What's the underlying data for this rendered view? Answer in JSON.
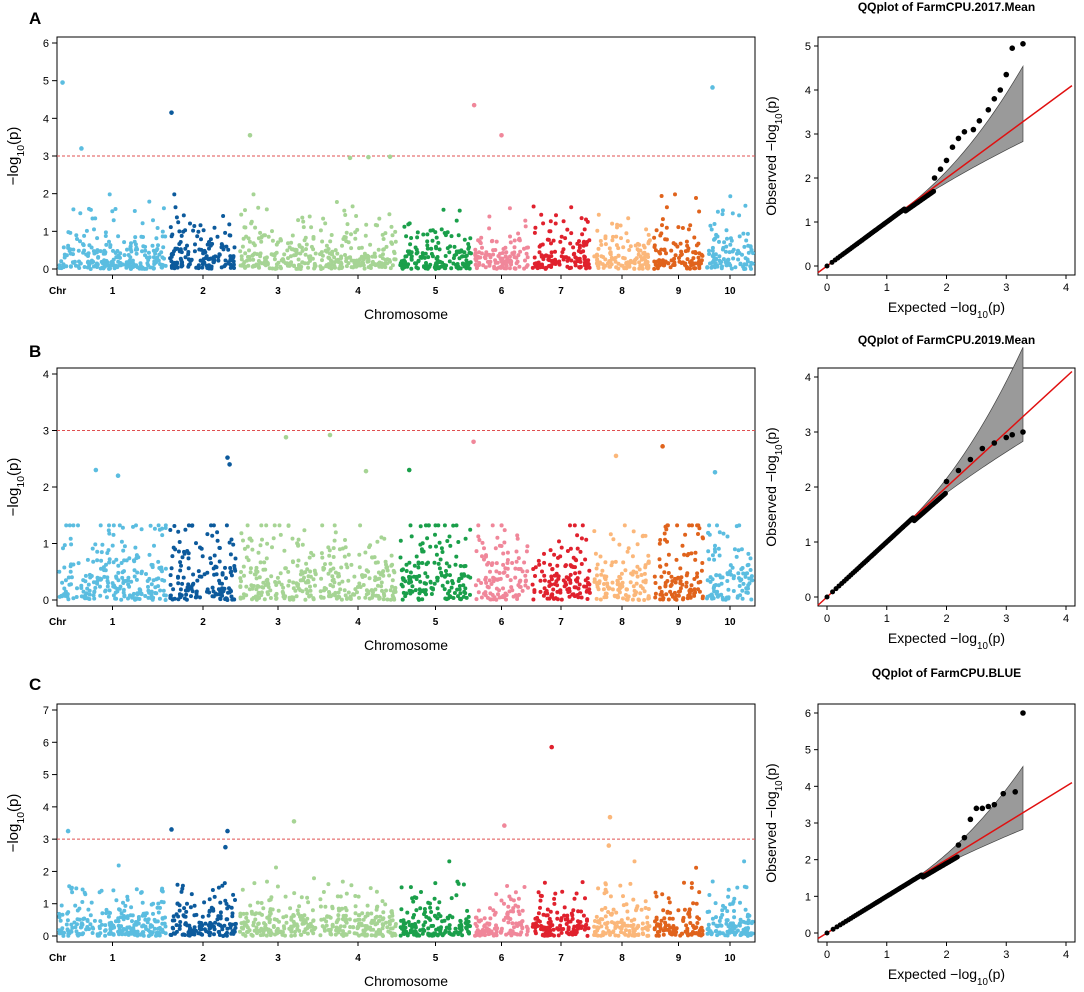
{
  "chromosome_colors": [
    "#5bbde0",
    "#0c5a9c",
    "#a6d494",
    "#a6d494",
    "#1a9f4a",
    "#f0879a",
    "#e0212d",
    "#fbb77a",
    "#e0631c",
    "#5bbde0",
    "#0c5a9c"
  ],
  "threshold_color": "#e05050",
  "qq_line_color": "#e01010",
  "qq_band_color": "#9a9a9a",
  "panels": [
    {
      "letter": "A",
      "manhattan": {
        "ylabel": "−log10(p)",
        "xlabel": "Chromosome",
        "chr_label": "Chr",
        "ylim": [
          0,
          6
        ],
        "yticks": [
          0,
          1,
          2,
          3,
          4,
          5,
          6
        ],
        "threshold": 3,
        "chromosomes": [
          "1",
          "2",
          "3",
          "4",
          "5",
          "6",
          "7",
          "8",
          "9",
          "10"
        ],
        "peaks": [
          {
            "chr": 1,
            "pos": 0.05,
            "value": 4.95
          },
          {
            "chr": 1,
            "pos": 0.22,
            "value": 3.2
          },
          {
            "chr": 2,
            "pos": 0.05,
            "value": 4.15
          },
          {
            "chr": 3,
            "pos": 0.15,
            "value": 3.55
          },
          {
            "chr": 4,
            "pos": 0.4,
            "value": 2.95
          },
          {
            "chr": 4,
            "pos": 0.63,
            "value": 2.97
          },
          {
            "chr": 4,
            "pos": 0.9,
            "value": 2.98
          },
          {
            "chr": 6,
            "pos": 0.02,
            "value": 4.35
          },
          {
            "chr": 6,
            "pos": 0.5,
            "value": 3.55
          },
          {
            "chr": 10,
            "pos": 0.15,
            "value": 4.82
          }
        ]
      },
      "qq": {
        "title": "QQplot of FarmCPU.2017.Mean",
        "xlabel": "Expected  −log10(p)",
        "ylabel": "Observed  −log10(p)",
        "xlim": [
          0,
          4
        ],
        "ylim": [
          0,
          5
        ],
        "xticks": [
          0,
          1,
          2,
          3,
          4
        ],
        "yticks": [
          0,
          1,
          2,
          3,
          4,
          5
        ],
        "tail": [
          {
            "x": 1.8,
            "y": 2.0
          },
          {
            "x": 1.9,
            "y": 2.2
          },
          {
            "x": 2.0,
            "y": 2.4
          },
          {
            "x": 2.1,
            "y": 2.7
          },
          {
            "x": 2.2,
            "y": 2.9
          },
          {
            "x": 2.3,
            "y": 3.05
          },
          {
            "x": 2.45,
            "y": 3.1
          },
          {
            "x": 2.55,
            "y": 3.3
          },
          {
            "x": 2.7,
            "y": 3.55
          },
          {
            "x": 2.8,
            "y": 3.8
          },
          {
            "x": 2.9,
            "y": 4.0
          },
          {
            "x": 3.0,
            "y": 4.35
          },
          {
            "x": 3.1,
            "y": 4.95
          },
          {
            "x": 3.28,
            "y": 5.05
          }
        ]
      }
    },
    {
      "letter": "B",
      "manhattan": {
        "ylabel": "−log10(p)",
        "xlabel": "Chromosome",
        "chr_label": "Chr",
        "ylim": [
          0,
          4
        ],
        "yticks": [
          0,
          1,
          2,
          3,
          4
        ],
        "threshold": 3,
        "chromosomes": [
          "1",
          "2",
          "3",
          "4",
          "5",
          "6",
          "7",
          "8",
          "9",
          "10"
        ],
        "peaks": [
          {
            "chr": 1,
            "pos": 0.35,
            "value": 2.3
          },
          {
            "chr": 1,
            "pos": 0.55,
            "value": 2.2
          },
          {
            "chr": 2,
            "pos": 0.85,
            "value": 2.52
          },
          {
            "chr": 2,
            "pos": 0.88,
            "value": 2.4
          },
          {
            "chr": 3,
            "pos": 0.6,
            "value": 2.88
          },
          {
            "chr": 4,
            "pos": 0.15,
            "value": 2.92
          },
          {
            "chr": 4,
            "pos": 0.6,
            "value": 2.28
          },
          {
            "chr": 5,
            "pos": 0.15,
            "value": 2.3
          },
          {
            "chr": 6,
            "pos": 0.01,
            "value": 2.8
          },
          {
            "chr": 8,
            "pos": 0.4,
            "value": 2.55
          },
          {
            "chr": 9,
            "pos": 0.2,
            "value": 2.72
          },
          {
            "chr": 10,
            "pos": 0.2,
            "value": 2.26
          }
        ]
      },
      "qq": {
        "title": "QQplot of FarmCPU.2019.Mean",
        "xlabel": "Expected  −log10(p)",
        "ylabel": "Observed  −log10(p)",
        "xlim": [
          0,
          4
        ],
        "ylim": [
          0,
          4
        ],
        "xticks": [
          0,
          1,
          2,
          3,
          4
        ],
        "yticks": [
          0,
          1,
          2,
          3,
          4
        ],
        "tail": [
          {
            "x": 2.0,
            "y": 2.1
          },
          {
            "x": 2.2,
            "y": 2.3
          },
          {
            "x": 2.4,
            "y": 2.5
          },
          {
            "x": 2.6,
            "y": 2.7
          },
          {
            "x": 2.8,
            "y": 2.8
          },
          {
            "x": 3.0,
            "y": 2.9
          },
          {
            "x": 3.1,
            "y": 2.95
          },
          {
            "x": 3.28,
            "y": 3.0
          }
        ]
      }
    },
    {
      "letter": "C",
      "manhattan": {
        "ylabel": "−log10(p)",
        "xlabel": "Chromosome",
        "chr_label": "Chr",
        "ylim": [
          0,
          7
        ],
        "yticks": [
          0,
          1,
          2,
          3,
          4,
          5,
          6,
          7
        ],
        "threshold": 3,
        "chromosomes": [
          "1",
          "2",
          "3",
          "4",
          "5",
          "6",
          "7",
          "8",
          "9",
          "10"
        ],
        "peaks": [
          {
            "chr": 1,
            "pos": 0.1,
            "value": 3.25
          },
          {
            "chr": 2,
            "pos": 0.05,
            "value": 3.3
          },
          {
            "chr": 2,
            "pos": 0.85,
            "value": 3.25
          },
          {
            "chr": 2,
            "pos": 0.82,
            "value": 2.75
          },
          {
            "chr": 3,
            "pos": 0.7,
            "value": 3.55
          },
          {
            "chr": 6,
            "pos": 0.55,
            "value": 3.42
          },
          {
            "chr": 7,
            "pos": 0.35,
            "value": 5.85
          },
          {
            "chr": 8,
            "pos": 0.3,
            "value": 3.68
          },
          {
            "chr": 8,
            "pos": 0.28,
            "value": 2.8
          }
        ]
      },
      "qq": {
        "title": "QQplot of FarmCPU.BLUE",
        "xlabel": "Expected  −log10(p)",
        "ylabel": "Observed  −log10(p)",
        "xlim": [
          0,
          4
        ],
        "ylim": [
          0,
          6
        ],
        "xticks": [
          0,
          1,
          2,
          3,
          4
        ],
        "yticks": [
          0,
          1,
          2,
          3,
          4,
          5,
          6
        ],
        "tail": [
          {
            "x": 2.2,
            "y": 2.4
          },
          {
            "x": 2.3,
            "y": 2.6
          },
          {
            "x": 2.4,
            "y": 3.1
          },
          {
            "x": 2.5,
            "y": 3.4
          },
          {
            "x": 2.6,
            "y": 3.4
          },
          {
            "x": 2.7,
            "y": 3.45
          },
          {
            "x": 2.8,
            "y": 3.5
          },
          {
            "x": 2.95,
            "y": 3.8
          },
          {
            "x": 3.15,
            "y": 3.85
          },
          {
            "x": 3.28,
            "y": 6.0
          }
        ]
      }
    }
  ],
  "chart_data": [
    {
      "type": "scatter",
      "subtype": "manhattan",
      "panel": "A",
      "xlabel": "Chromosome",
      "ylabel": "−log10(p)",
      "ylim": [
        0,
        6
      ],
      "threshold": 3,
      "categories": [
        "1",
        "2",
        "3",
        "4",
        "5",
        "6",
        "7",
        "8",
        "9",
        "10"
      ]
    },
    {
      "type": "scatter",
      "subtype": "qq",
      "panel": "A",
      "title": "QQplot of FarmCPU.2017.Mean",
      "xlabel": "Expected −log10(p)",
      "ylabel": "Observed −log10(p)",
      "xlim": [
        0,
        4
      ],
      "ylim": [
        0,
        5
      ],
      "max_observed": 5.05
    },
    {
      "type": "scatter",
      "subtype": "manhattan",
      "panel": "B",
      "xlabel": "Chromosome",
      "ylabel": "−log10(p)",
      "ylim": [
        0,
        4
      ],
      "threshold": 3,
      "categories": [
        "1",
        "2",
        "3",
        "4",
        "5",
        "6",
        "7",
        "8",
        "9",
        "10"
      ]
    },
    {
      "type": "scatter",
      "subtype": "qq",
      "panel": "B",
      "title": "QQplot of FarmCPU.2019.Mean",
      "xlabel": "Expected −log10(p)",
      "ylabel": "Observed −log10(p)",
      "xlim": [
        0,
        4
      ],
      "ylim": [
        0,
        4
      ],
      "max_observed": 3.0
    },
    {
      "type": "scatter",
      "subtype": "manhattan",
      "panel": "C",
      "xlabel": "Chromosome",
      "ylabel": "−log10(p)",
      "ylim": [
        0,
        7
      ],
      "threshold": 3,
      "categories": [
        "1",
        "2",
        "3",
        "4",
        "5",
        "6",
        "7",
        "8",
        "9",
        "10"
      ]
    },
    {
      "type": "scatter",
      "subtype": "qq",
      "panel": "C",
      "title": "QQplot of FarmCPU.BLUE",
      "xlabel": "Expected −log10(p)",
      "ylabel": "Observed −log10(p)",
      "xlim": [
        0,
        4
      ],
      "ylim": [
        0,
        6
      ],
      "max_observed": 6.0
    }
  ]
}
